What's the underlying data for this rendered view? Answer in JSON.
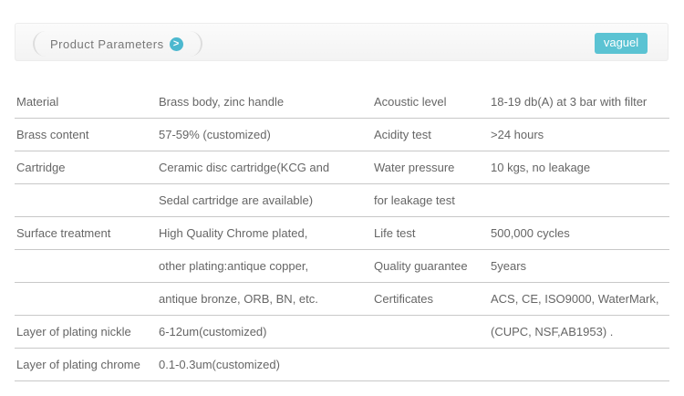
{
  "header": {
    "title": "Product Parameters",
    "arrow_icon": "chevron-right-icon",
    "logo": "vaguel",
    "accent": "#4cb8cf"
  },
  "rows": [
    [
      "Material",
      "Brass body, zinc handle",
      "Acoustic level",
      "18-19 db(A) at 3 bar with filter"
    ],
    [
      "Brass content",
      "57-59% (customized)",
      "Acidity test",
      ">24 hours"
    ],
    [
      "Cartridge",
      "Ceramic disc cartridge(KCG and",
      "Water pressure",
      "10 kgs, no leakage"
    ],
    [
      "",
      "Sedal cartridge are available)",
      "for leakage test",
      ""
    ],
    [
      "Surface treatment",
      "High Quality Chrome plated,",
      "Life test",
      "500,000 cycles"
    ],
    [
      "",
      "other plating:antique copper,",
      "Quality guarantee",
      "5years"
    ],
    [
      "",
      "antique bronze, ORB, BN, etc.",
      "Certificates",
      "ACS, CE, ISO9000,  WaterMark,"
    ],
    [
      "Layer of plating nickle",
      "6-12um(customized)",
      "",
      "(CUPC, NSF,AB1953) ."
    ],
    [
      "Layer of plating chrome",
      "0.1-0.3um(customized)",
      "",
      ""
    ]
  ]
}
